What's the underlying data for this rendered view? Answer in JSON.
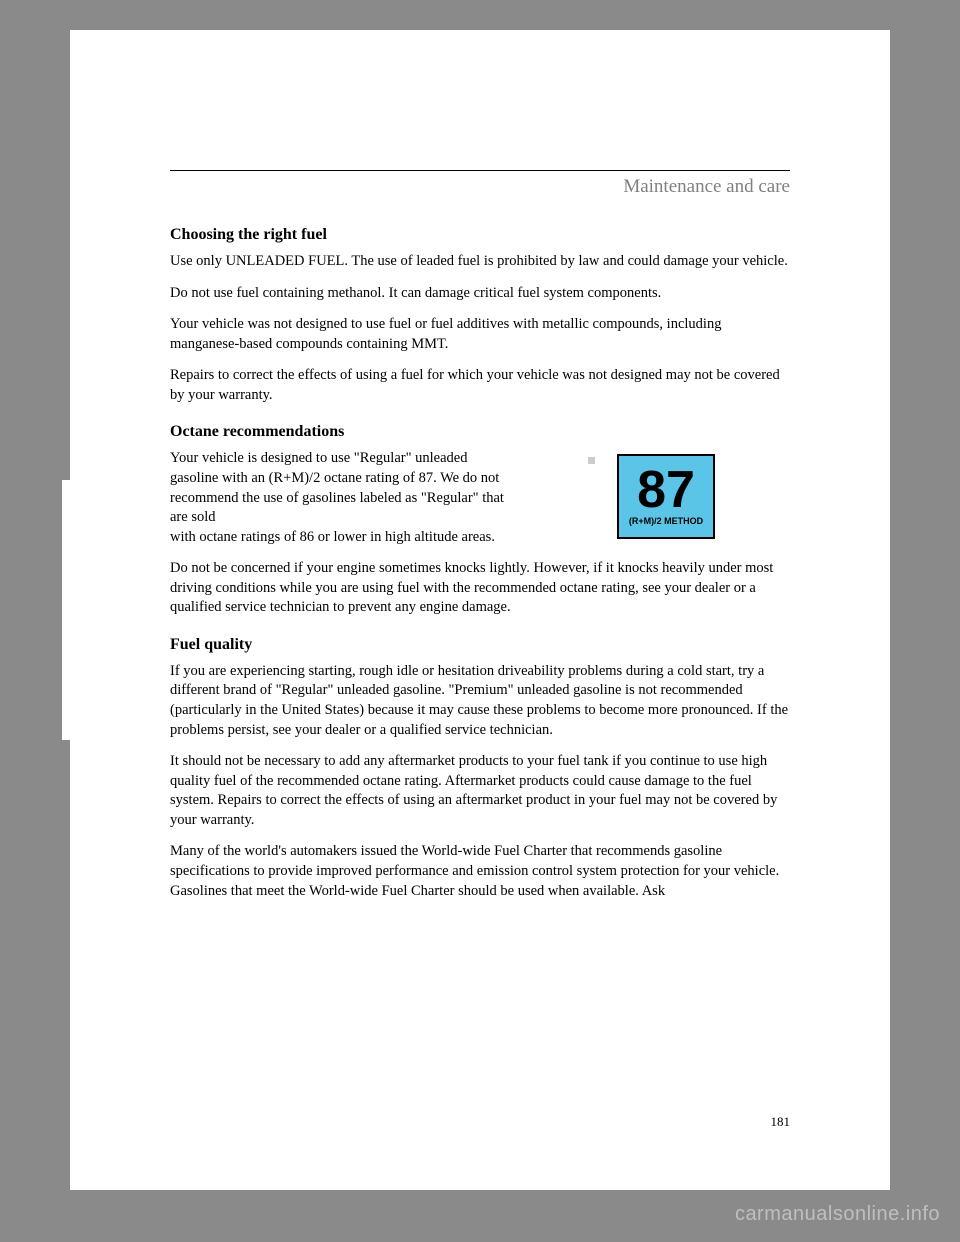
{
  "header": {
    "title": "Maintenance and care"
  },
  "sections": {
    "choosing": {
      "heading": "Choosing the right fuel",
      "p1": "Use only UNLEADED FUEL. The use of leaded fuel is prohibited by law and could damage your vehicle.",
      "p2": "Do not use fuel containing methanol. It can damage critical fuel system components.",
      "p3": "Your vehicle was not designed to use fuel or fuel additives with metallic compounds, including manganese-based compounds containing MMT.",
      "p4": "Repairs to correct the effects of using a fuel for which your vehicle was not designed may not be covered by your warranty."
    },
    "octane": {
      "heading": "Octane recommendations",
      "p1": "Your vehicle is designed to use \"Regular\" unleaded gasoline with an (R+M)/2 octane rating of 87. We do not recommend the use of gasolines labeled as \"Regular\" that are sold with octane ratings of 86 or lower in high altitude areas.",
      "p2": "Do not be concerned if your engine sometimes knocks lightly. However, if it knocks heavily under most driving conditions while you are using fuel with the recommended octane rating, see your dealer or a qualified service technician to prevent any engine damage.",
      "badge_number": "87",
      "badge_method": "(R+M)/2 METHOD"
    },
    "quality": {
      "heading": "Fuel quality",
      "p1": "If you are experiencing starting, rough idle or hesitation driveability problems during a cold start, try a different brand of \"Regular\" unleaded gasoline. \"Premium\" unleaded gasoline is not recommended (particularly in the United States) because it may cause these problems to become more pronounced. If the problems persist, see your dealer or a qualified service technician.",
      "p2": "It should not be necessary to add any aftermarket products to your fuel tank if you continue to use high quality fuel of the recommended octane rating. Aftermarket products could cause damage to the fuel system. Repairs to correct the effects of using an aftermarket product in your fuel may not be covered by your warranty.",
      "p3": "Many of the world's automakers issued the World-wide Fuel Charter that recommends gasoline specifications to provide improved performance and emission control system protection for your vehicle. Gasolines that meet the World-wide Fuel Charter should be used when available. Ask"
    }
  },
  "page_number": "181",
  "footer_url": "carmanualsonline.info",
  "styling": {
    "page_bg": "#ffffff",
    "outer_bg": "#8a8a8a",
    "header_color": "#808080",
    "text_color": "#000000",
    "badge_bg": "#5bc5e8",
    "badge_border": "#000000",
    "footer_color": "#bfbfbf"
  }
}
